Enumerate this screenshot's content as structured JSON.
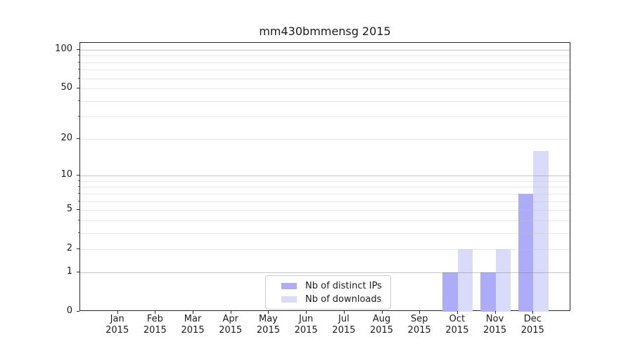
{
  "chart_data": {
    "type": "bar",
    "title": "mm430bmmensg 2015",
    "x_months": [
      "Jan",
      "Feb",
      "Mar",
      "Apr",
      "May",
      "Jun",
      "Jul",
      "Aug",
      "Sep",
      "Oct",
      "Nov",
      "Dec"
    ],
    "x_year": "2015",
    "series": [
      {
        "name": "Nb of distinct IPs",
        "color": "#acacfa",
        "values": [
          0,
          0,
          0,
          0,
          0,
          0,
          0,
          0,
          0,
          1,
          1,
          7
        ]
      },
      {
        "name": "Nb of downloads",
        "color": "#dadafa",
        "values": [
          0,
          0,
          0,
          0,
          0,
          0,
          0,
          0,
          0,
          2,
          2,
          16
        ]
      }
    ],
    "y_axis": {
      "scale": "log10(1+x)",
      "tick_labels": [
        "0",
        "1",
        "2",
        "5",
        "10",
        "20",
        "50",
        "100"
      ],
      "tick_values": [
        0,
        1,
        2,
        5,
        10,
        20,
        50,
        100
      ],
      "decade_grid_values": [
        1,
        10,
        100
      ],
      "minor_grid_values": [
        2,
        3,
        4,
        5,
        6,
        7,
        8,
        9,
        20,
        30,
        40,
        50,
        60,
        70,
        80,
        90
      ],
      "top_value": 113
    },
    "grid": "on",
    "legend": {
      "position": "lower-center",
      "entries": [
        "Nb of distinct IPs",
        "Nb of downloads"
      ]
    },
    "colors": {
      "distinct_ips": "#acacfa",
      "downloads": "#dadafa",
      "decade_gridline": "#c3c3c3",
      "minor_gridline": "#ebebeb",
      "spine": "#262626"
    }
  }
}
